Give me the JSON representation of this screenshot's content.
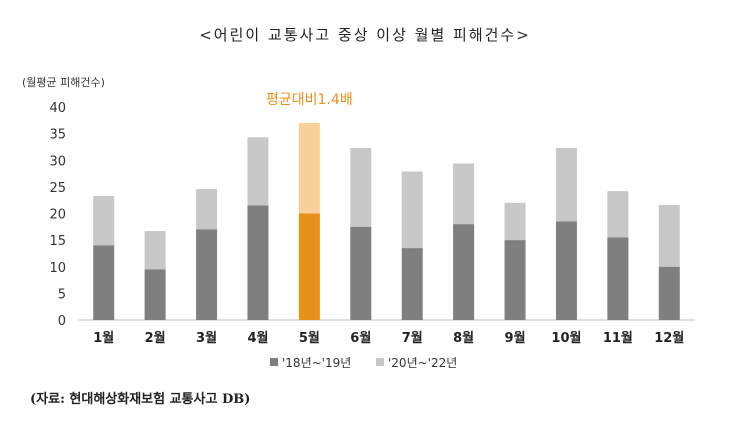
{
  "page": {
    "title": "<어린이 교통사고 중상 이상 월별 피해건수>",
    "source": "(자료: 현대해상화재보험 교통사고 DB)"
  },
  "chart_data": {
    "type": "bar",
    "stacked": true,
    "title": "<어린이 교통사고 중상 이상 월별 피해건수>",
    "ylabel": "(월평균 피해건수)",
    "xlabel": "",
    "ylim": [
      0,
      40
    ],
    "yticks": [
      0,
      5,
      10,
      15,
      20,
      25,
      30,
      35,
      40
    ],
    "grid": false,
    "legend_position": "bottom",
    "categories": [
      "1월",
      "2월",
      "3월",
      "4월",
      "5월",
      "6월",
      "7월",
      "8월",
      "9월",
      "10월",
      "11월",
      "12월"
    ],
    "series": [
      {
        "name": "'18년~'19년",
        "color": "#7f7f7f",
        "highlight_color": "#e8901c",
        "values": [
          14,
          9.5,
          17,
          21.5,
          20,
          17.5,
          13.5,
          18,
          15,
          18.5,
          15.5,
          10
        ]
      },
      {
        "name": "'20년~'22년",
        "color": "#c8c8c8",
        "highlight_color": "#f8d09a",
        "values": [
          9.3,
          7.2,
          7.6,
          12.8,
          17,
          14.8,
          14.4,
          11.4,
          7,
          13.8,
          8.7,
          11.6
        ]
      }
    ],
    "highlight_index": 4,
    "annotation": "평균대비1.4배"
  }
}
